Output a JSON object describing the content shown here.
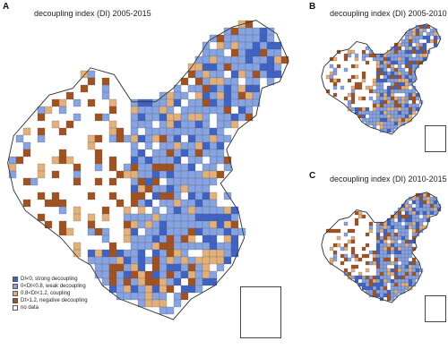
{
  "colors": {
    "strong": "#3f62c6",
    "weak": "#86a3e2",
    "coupling": "#e3b07a",
    "negative": "#a3521f",
    "nodata": "#ffffff",
    "border": "#5b5b5b"
  },
  "panels": [
    {
      "letter": "A",
      "title": "decoupling index (DI) 2005-2015"
    },
    {
      "letter": "B",
      "title": "decoupling index (DI) 2005-2010"
    },
    {
      "letter": "C",
      "title": "decoupling index (DI) 2010-2015"
    }
  ],
  "legend": [
    {
      "key": "strong",
      "label": "DI<0, strong decoupling"
    },
    {
      "key": "weak",
      "label": "0<DI<0.8, weak decoupling"
    },
    {
      "key": "coupling",
      "label": "0.8<DI<1.2, coupling"
    },
    {
      "key": "negative",
      "label": "DI>1.2, negative decoupling"
    },
    {
      "key": "nodata",
      "label": "no data"
    }
  ]
}
